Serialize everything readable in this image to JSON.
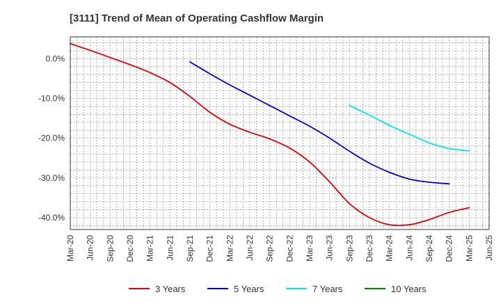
{
  "chart_data": {
    "type": "line",
    "title": "[3111]  Trend of Mean of Operating Cashflow Margin",
    "xlabel": "",
    "ylabel": "",
    "x_ticks": [
      "Mar-20",
      "Jun-20",
      "Sep-20",
      "Dec-20",
      "Mar-21",
      "Jun-21",
      "Sep-21",
      "Dec-21",
      "Mar-22",
      "Jun-22",
      "Sep-22",
      "Dec-22",
      "Mar-23",
      "Jun-23",
      "Sep-23",
      "Dec-23",
      "Mar-24",
      "Jun-24",
      "Sep-24",
      "Dec-24",
      "Mar-25",
      "Jun-25"
    ],
    "y_ticks": [
      0,
      -10,
      -20,
      -30,
      -40
    ],
    "y_tick_labels": [
      "0.0%",
      "-10.0%",
      "-20.0%",
      "-30.0%",
      "-40.0%"
    ],
    "ylim": [
      -43,
      5.5
    ],
    "grid": true,
    "legend_position": "bottom",
    "series": [
      {
        "name": "3 Years",
        "color": "#dd0000",
        "start_index": 0,
        "values": [
          3.8,
          2.1,
          0.3,
          -1.5,
          -3.5,
          -6,
          -9.5,
          -13.5,
          -16.5,
          -18.5,
          -20.2,
          -22.5,
          -26,
          -31,
          -36.5,
          -40,
          -41.8,
          -41.8,
          -40.5,
          -38.7,
          -37.5
        ]
      },
      {
        "name": "5 Years",
        "color": "#0000cc",
        "start_index": 6,
        "values": [
          -0.8,
          -3.8,
          -6.6,
          -9.2,
          -11.8,
          -14.4,
          -17,
          -20,
          -23.3,
          -26.3,
          -28.6,
          -30.3,
          -31.1,
          -31.5
        ]
      },
      {
        "name": "7 Years",
        "color": "#00e5ee",
        "start_index": 14,
        "values": [
          -11.8,
          -14.2,
          -16.8,
          -19,
          -21.2,
          -22.6,
          -23.2
        ]
      },
      {
        "name": "10 Years",
        "color": "#008000",
        "start_index": 0,
        "values": []
      }
    ]
  }
}
